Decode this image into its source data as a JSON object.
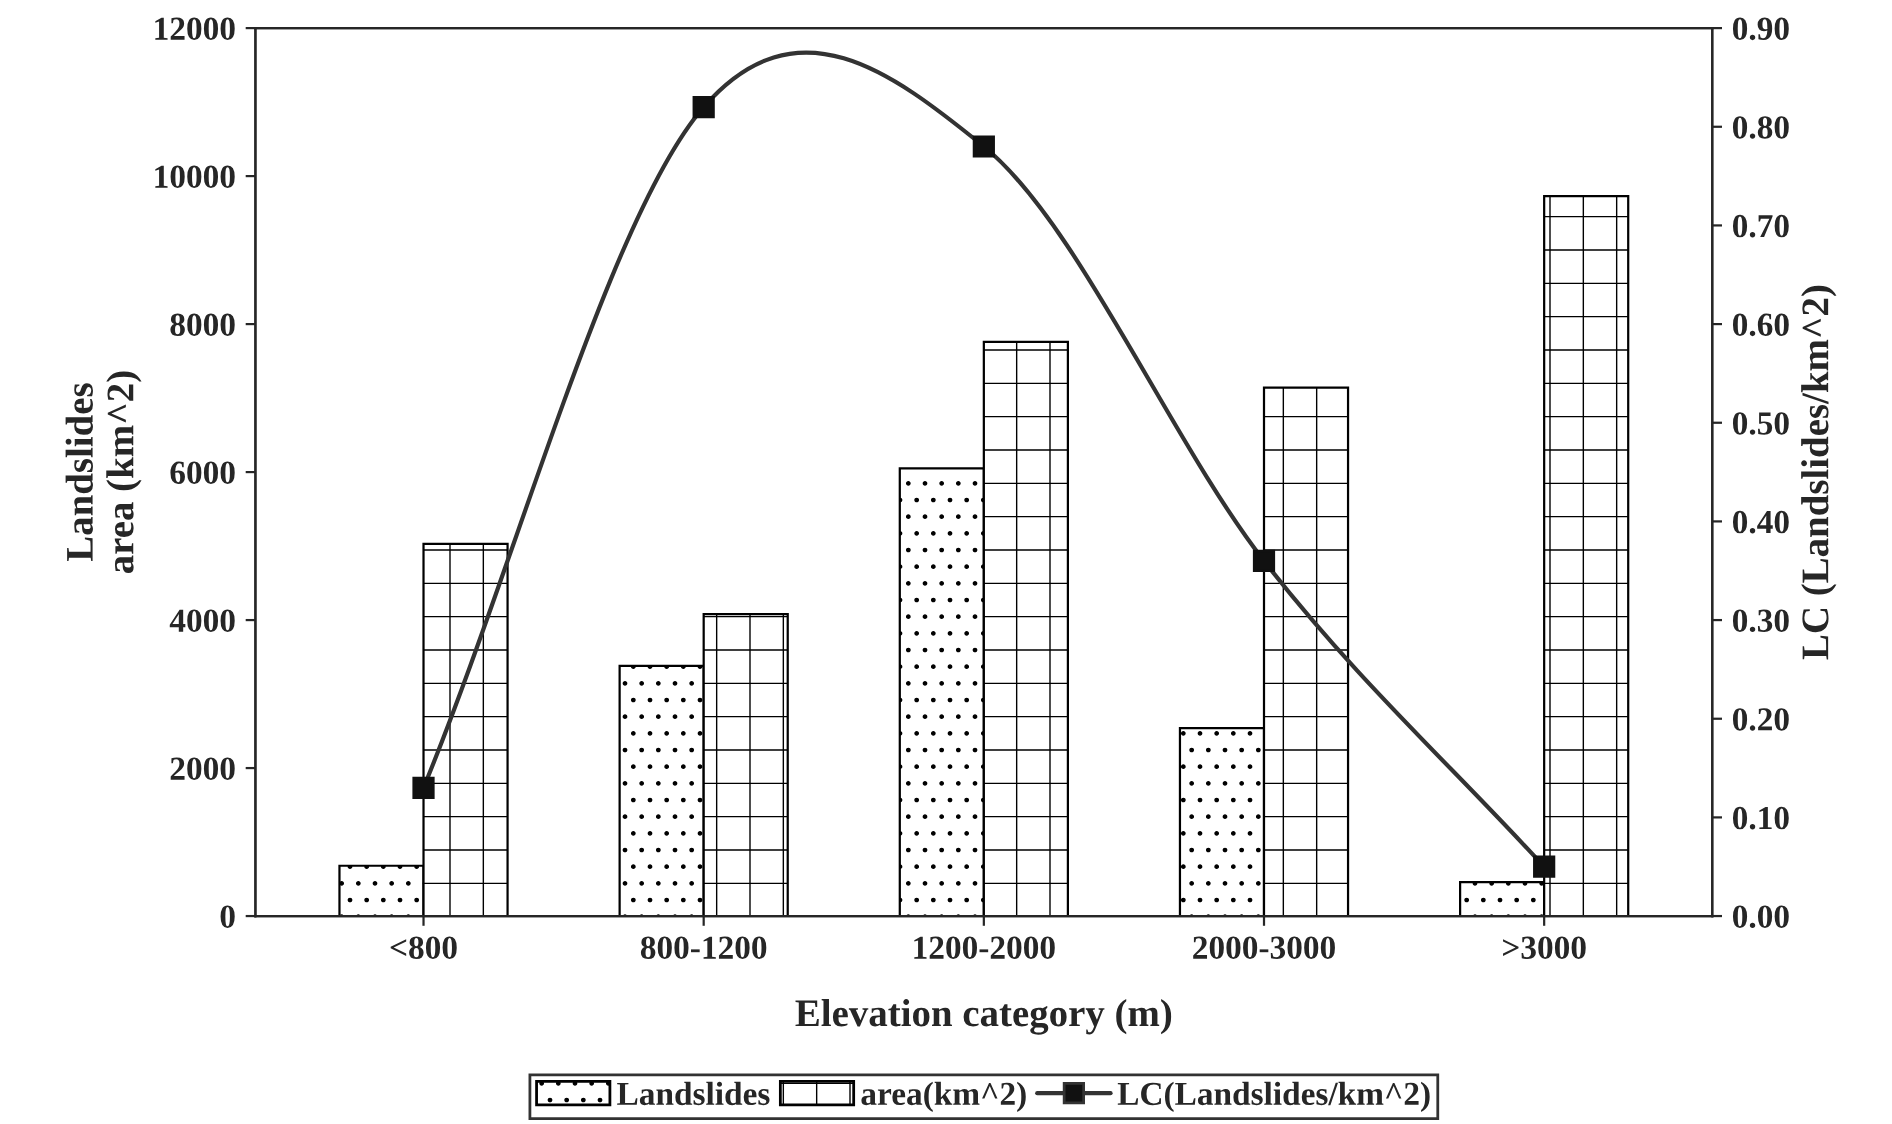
{
  "chart_data": {
    "type": "bar",
    "xlabel": "Elevation category (m)",
    "ylabel": "Landslides\narea (km^2)",
    "y2label": "LC (Landslides/km^2)",
    "categories": [
      "<800",
      "800-1200",
      "1200-2000",
      "2000-3000",
      ">3000"
    ],
    "series": [
      {
        "name": "Landslides",
        "color": "#000000",
        "values": [
          680,
          3380,
          6050,
          2540,
          460
        ]
      },
      {
        "name": "area(km^2)",
        "color": "#000000",
        "values": [
          5030,
          4080,
          7760,
          7140,
          9730
        ]
      },
      {
        "name": "LC(Landslides/km^2)",
        "type": "line",
        "axis": "y2",
        "color": "#333333",
        "marker": "square",
        "values": [
          0.13,
          0.82,
          0.78,
          0.36,
          0.05
        ]
      }
    ],
    "ylim": [
      0,
      12000
    ],
    "yticks": [
      0,
      2000,
      4000,
      6000,
      8000,
      10000,
      12000
    ],
    "y2lim": [
      0,
      0.9
    ],
    "y2ticks": [
      {
        "value": 0,
        "label": "0.00"
      },
      {
        "value": 0.1,
        "label": "0.10"
      },
      {
        "value": 0.2,
        "label": "0.20"
      },
      {
        "value": 0.3,
        "label": "0.30"
      },
      {
        "value": 0.4,
        "label": "0.40"
      },
      {
        "value": 0.5,
        "label": "0.50"
      },
      {
        "value": 0.6,
        "label": "0.60"
      },
      {
        "value": 0.7,
        "label": "0.70"
      },
      {
        "value": 0.8,
        "label": "0.80"
      },
      {
        "value": 0.9,
        "label": "0.90"
      }
    ],
    "legend": "bottom",
    "grid": false
  }
}
